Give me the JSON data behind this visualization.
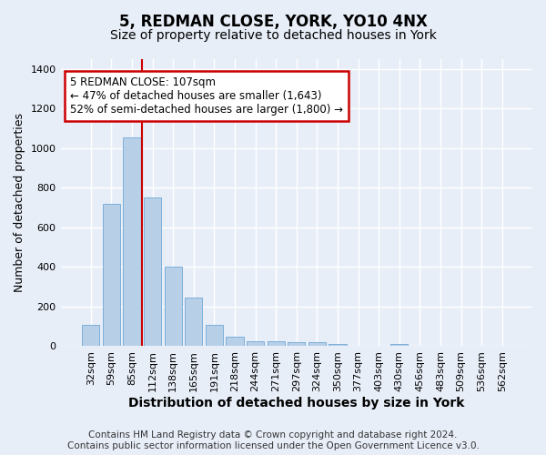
{
  "title_line1": "5, REDMAN CLOSE, YORK, YO10 4NX",
  "title_line2": "Size of property relative to detached houses in York",
  "xlabel": "Distribution of detached houses by size in York",
  "ylabel": "Number of detached properties",
  "categories": [
    "32sqm",
    "59sqm",
    "85sqm",
    "112sqm",
    "138sqm",
    "165sqm",
    "191sqm",
    "218sqm",
    "244sqm",
    "271sqm",
    "297sqm",
    "324sqm",
    "350sqm",
    "377sqm",
    "403sqm",
    "430sqm",
    "456sqm",
    "483sqm",
    "509sqm",
    "536sqm",
    "562sqm"
  ],
  "values": [
    107,
    720,
    1055,
    750,
    400,
    245,
    110,
    47,
    27,
    27,
    20,
    20,
    10,
    0,
    0,
    10,
    0,
    0,
    0,
    0,
    0
  ],
  "bar_color": "#b8cfe8",
  "bar_edge_color": "#6fa8d6",
  "vline_x_idx": 3,
  "vline_color": "#cc0000",
  "annotation_text": "5 REDMAN CLOSE: 107sqm\n← 47% of detached houses are smaller (1,643)\n52% of semi-detached houses are larger (1,800) →",
  "annotation_box_color": "white",
  "annotation_box_edge": "#cc0000",
  "ylim": [
    0,
    1450
  ],
  "yticks": [
    0,
    200,
    400,
    600,
    800,
    1000,
    1200,
    1400
  ],
  "footer": "Contains HM Land Registry data © Crown copyright and database right 2024.\nContains public sector information licensed under the Open Government Licence v3.0.",
  "bg_color": "#e8eef8",
  "plot_bg_color": "#e8eef8",
  "grid_color": "white",
  "title1_fontsize": 12,
  "title2_fontsize": 10,
  "xlabel_fontsize": 10,
  "ylabel_fontsize": 9,
  "tick_fontsize": 8,
  "annot_fontsize": 8.5,
  "footer_fontsize": 7.5
}
